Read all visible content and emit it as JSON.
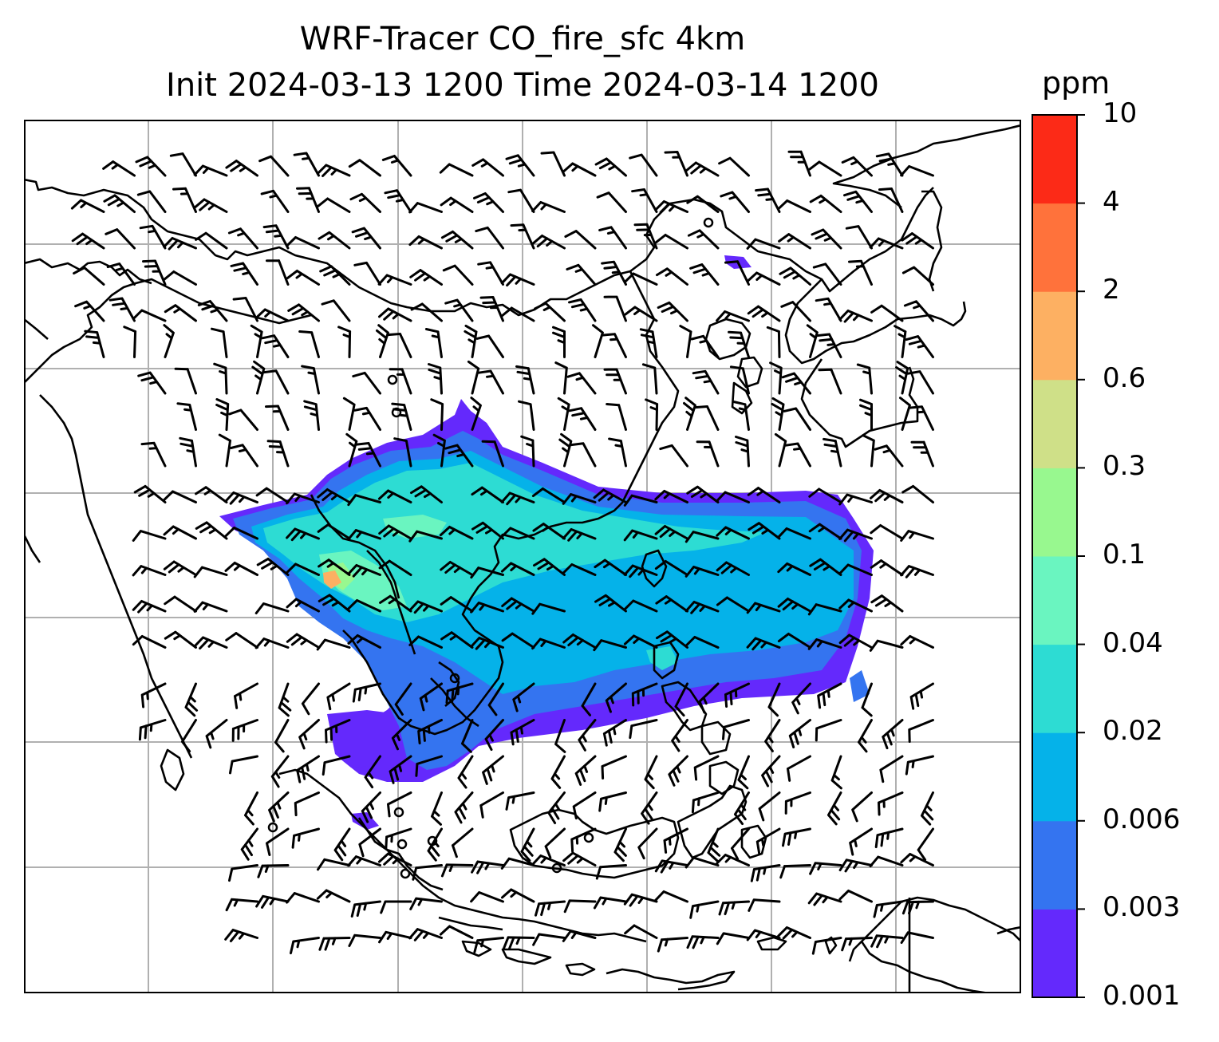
{
  "title": {
    "line1": "WRF-Tracer CO_fire_sfc 4km",
    "line2": "Init 2024-03-13 1200 Time 2024-03-14 1200"
  },
  "colorbar": {
    "label": "ppm",
    "levels": [
      "0.001",
      "0.003",
      "0.006",
      "0.02",
      "0.04",
      "0.1",
      "0.3",
      "0.6",
      "2",
      "4",
      "10"
    ],
    "colors": [
      "#6429fc",
      "#3474f0",
      "#05b2e9",
      "#2ddcd3",
      "#6af5c0",
      "#98f88f",
      "#cfe088",
      "#fdb062",
      "#ff723b",
      "#fc2a17"
    ]
  },
  "map": {
    "field": "CO_fire_sfc",
    "units": "ppm",
    "gridlines": true,
    "overlay": "wind barbs",
    "background": "#ffffff",
    "coastline_color": "#000000",
    "grid_color": "#b0b0b0"
  }
}
